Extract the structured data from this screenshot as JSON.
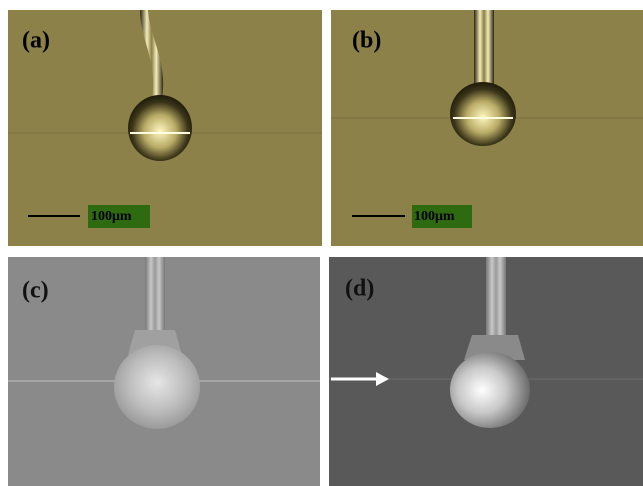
{
  "panels": [
    {
      "label": "(a)",
      "scale_bar": "100μm"
    },
    {
      "label": "(b)",
      "scale_bar": "100μm"
    },
    {
      "label": "(c)"
    },
    {
      "label": "(d)"
    }
  ]
}
